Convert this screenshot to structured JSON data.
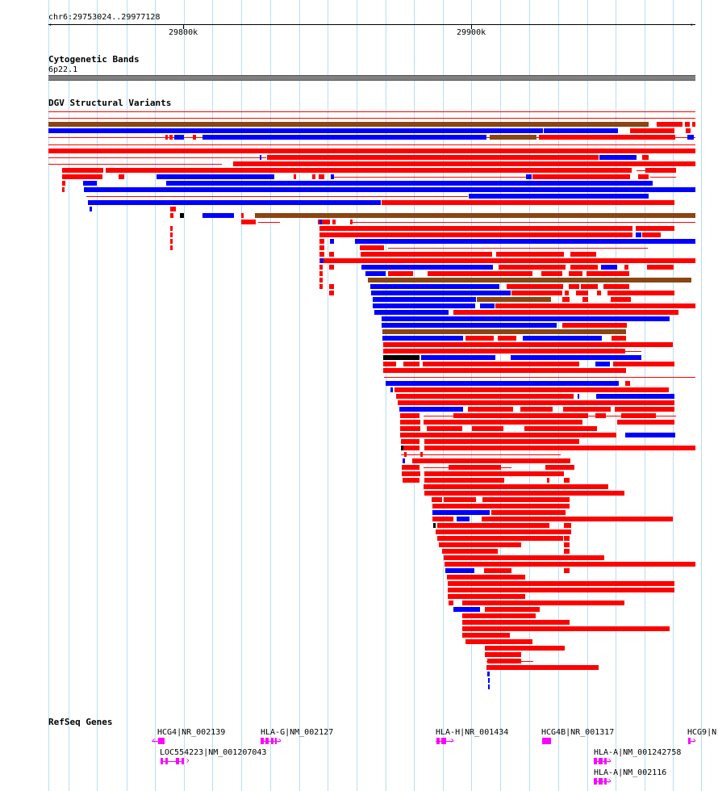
{
  "ruler": {
    "location": "chr6:29753024..29977128",
    "ticks": [
      "29800k",
      "29900k"
    ]
  },
  "tracks": {
    "cytoband": {
      "title": "Cytogenetic Bands",
      "band": "6p22.1"
    },
    "dgv": {
      "title": "DGV Structural Variants"
    },
    "refseq": {
      "title": "RefSeq Genes"
    }
  },
  "colors": {
    "loss": "#ff0000",
    "gain": "#0000ff",
    "complex": "#8b4513",
    "other": "#000000",
    "gene": "#ff00ff",
    "grid": "#b8dff2",
    "band": "#808080"
  },
  "genes": [
    {
      "label": "HCG4|NR_002139"
    },
    {
      "label": "LOC554223|NM_001207043"
    },
    {
      "label": "HLA-G|NM_002127"
    },
    {
      "label": "HLA-H|NR_001434"
    },
    {
      "label": "HCG4B|NR_001317"
    },
    {
      "label": "HLA-A|NM_001242758"
    },
    {
      "label": "HLA-A|NM_002116"
    },
    {
      "label": "HCG9|N"
    }
  ]
}
